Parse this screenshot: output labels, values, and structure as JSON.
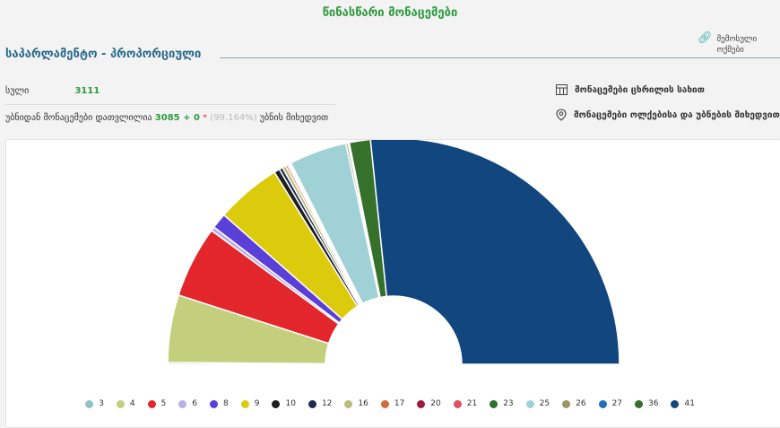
{
  "page": {
    "title": "წინასწარი მონაცემები",
    "section_title": "საპარლამენტო - პროპორციული",
    "share_label": "შემოსული ოქმები"
  },
  "stats": {
    "total_label": "სული",
    "total_value": "3111",
    "processed_prefix": "უბნიდან მონაცემები დათვლილია",
    "processed_value": "3085 + 0",
    "asterisk": "*",
    "processed_percent": "(99.164%)",
    "processed_suffix": "უბნის მიხედვით"
  },
  "side_links": {
    "table_view": "მონაცემები ცხრილის სახით",
    "by_district": "მონაცემები ოლქებისა და უბნების მიხედვით"
  },
  "colors": {
    "accent_green": "#2e9b3f",
    "section_blue": "#2a6a8a",
    "link_teal": "#2fa9a0"
  },
  "chart_data": {
    "type": "half-donut",
    "series": [
      {
        "name": "3",
        "value": 0.25,
        "color": "#8fc3c3"
      },
      {
        "name": "4",
        "value": 9.6,
        "color": "#c3cf7d"
      },
      {
        "name": "5",
        "value": 10.2,
        "color": "#e2262b"
      },
      {
        "name": "6",
        "value": 0.6,
        "color": "#b9aee6"
      },
      {
        "name": "8",
        "value": 2.2,
        "color": "#5b3fd9"
      },
      {
        "name": "9",
        "value": 9.3,
        "color": "#dccb0d"
      },
      {
        "name": "10",
        "value": 0.8,
        "color": "#1f1f1f"
      },
      {
        "name": "12",
        "value": 0.5,
        "color": "#1c2c4f"
      },
      {
        "name": "16",
        "value": 0.5,
        "color": "#bdba7e"
      },
      {
        "name": "17",
        "value": 0.3,
        "color": "#d46b3c"
      },
      {
        "name": "20",
        "value": 0.2,
        "color": "#9a1a3b"
      },
      {
        "name": "21",
        "value": 0.2,
        "color": "#e0515f"
      },
      {
        "name": "23",
        "value": 0.15,
        "color": "#2f6e2e"
      },
      {
        "name": "25",
        "value": 8.2,
        "color": "#9fd1d6"
      },
      {
        "name": "26",
        "value": 0.3,
        "color": "#9e9464"
      },
      {
        "name": "27",
        "value": 0.2,
        "color": "#1e6fc0"
      },
      {
        "name": "36",
        "value": 3.0,
        "color": "#36712b"
      },
      {
        "name": "41",
        "value": 53.0,
        "color": "#12467e"
      }
    ]
  }
}
